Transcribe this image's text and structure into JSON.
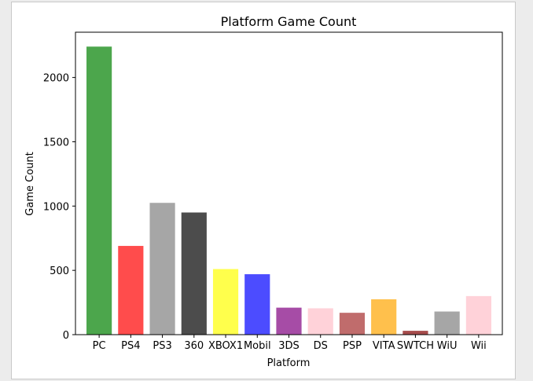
{
  "chart_data": {
    "type": "bar",
    "title": "Platform Game Count",
    "xlabel": "Platform",
    "ylabel": "Game Count",
    "categories": [
      "PC",
      "PS4",
      "PS3",
      "360",
      "XBOX1",
      "Mobil",
      "3DS",
      "DS",
      "PSP",
      "VITA",
      "SWTCH",
      "WiU",
      "Wii"
    ],
    "values": [
      2240,
      690,
      1025,
      950,
      510,
      470,
      210,
      205,
      170,
      275,
      30,
      180,
      300
    ],
    "colors": [
      "#4ca64c",
      "#ff4c4c",
      "#a6a6a6",
      "#4c4c4c",
      "#ffff4c",
      "#4c4cff",
      "#a64ca6",
      "#ffd2d9",
      "#c06c6c",
      "#ffc04c",
      "#a64c4c",
      "#a6a6a6",
      "#ffd2d9"
    ],
    "yticks": [
      0,
      500,
      1000,
      1500,
      2000
    ],
    "ylim": [
      0,
      2352
    ],
    "grid": false,
    "legend": "none"
  }
}
